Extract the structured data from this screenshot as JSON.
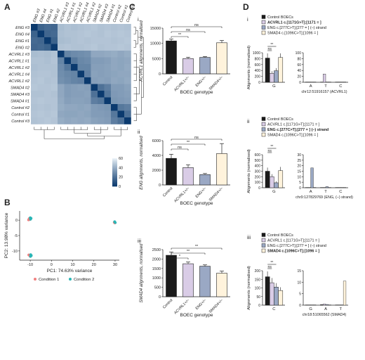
{
  "panels": {
    "A": {
      "label": "A",
      "samples": [
        "ENG #3",
        "ENG #4",
        "ENG #1",
        "ENG #2",
        "ACVRL1 #3",
        "ACVRL1 #1",
        "ACVRL1 #2",
        "ACVRL1 #4",
        "ACVRL1 #2",
        "SMAD4 #2",
        "SMAD4 #3",
        "SMAD4 #1",
        "Control #2",
        "Control #1",
        "Control #3"
      ],
      "rows": [
        "ENG #3",
        "ENG #4",
        "ENG #1",
        "ENG #2",
        "ACVRL1 #3",
        "ACVRL1 #1",
        "ACVRL1 #2",
        "ACVRL1 #4",
        "ACVRL1 #2",
        "SMAD4 #2",
        "SMAD4 #3",
        "SMAD4 #1",
        "Control #2",
        "Control #1",
        "Control #3"
      ],
      "colorbar_ticks": [
        "60",
        "40",
        "20",
        "0"
      ]
    },
    "B": {
      "label": "B",
      "xlabel": "PC1: 74.63% variance",
      "ylabel": "PC2: 13.98% variance",
      "xticks": [
        "-10",
        "0",
        "10",
        "20",
        "30"
      ],
      "yticks": [
        "0",
        "-5",
        "-10"
      ],
      "legend": [
        {
          "name": "Condition 1",
          "color": "#f08080"
        },
        {
          "name": "Condition 2",
          "color": "#2ab5b5"
        }
      ]
    },
    "C": {
      "label": "C",
      "xlabel": "BOEC genotype",
      "subpanels": [
        {
          "roman": "i",
          "ylabel": "ACVRL1 alignments, normalised",
          "yticks": [
            "0",
            "5000",
            "10000",
            "15000"
          ],
          "sig": [
            "**",
            "ns",
            "ns"
          ]
        },
        {
          "roman": "ii",
          "ylabel": "ENG alignments, normalised",
          "yticks": [
            "0",
            "2000",
            "4000",
            "6000"
          ],
          "sig": [
            "ns",
            "**",
            "ns"
          ]
        },
        {
          "roman": "iii",
          "ylabel": "SMAD4 alignments, normalised",
          "yticks": [
            "0",
            "500",
            "1000",
            "1500",
            "2000",
            "2500"
          ],
          "sig": [
            "*",
            "**",
            "**"
          ]
        }
      ]
    },
    "D": {
      "label": "D",
      "ylabel": "Alignments (normalised)",
      "subpanels": [
        {
          "roman": "i",
          "legend": [
            "Control BOECs",
            "ACVRL1 c.[1171G>T];[1171 = ]",
            "ENG c.[277C>T];[277 = ] (–) strand",
            "SMAD4 c.[1096C>T];[1096 = ]"
          ],
          "left_cat": "G",
          "right_cats": [
            "A",
            "T",
            "C"
          ],
          "locus": "chr12:51916157 (ACVRL1)",
          "yticks_left": [
            "0",
            "200",
            "400",
            "600",
            "800",
            "1000"
          ],
          "yticks_right": [
            "0",
            "20",
            "40",
            "60",
            "80",
            "100"
          ],
          "sig": [
            "**",
            "ns"
          ]
        },
        {
          "roman": "ii",
          "legend": [
            "Control BOECs",
            "ACVRL1 c.[1171G>T];[1171 = ]",
            "ENG c.[277C>T];[277 = ] (–) strand",
            "SMAD4 c.[1096C>T];[1096 = ]"
          ],
          "left_cat": "G",
          "right_cats": [
            "A",
            "T",
            "C"
          ],
          "locus": "chr9:127829769 (ENG, (–) strand)",
          "yticks_left": [
            "0",
            "100",
            "200",
            "300",
            "400",
            "500",
            "600"
          ],
          "yticks_right": [
            "0",
            "5",
            "10",
            "15",
            "20",
            "25",
            "30"
          ],
          "sig": [
            "**",
            "ns"
          ]
        },
        {
          "roman": "iii",
          "legend": [
            "Control BOECs",
            "ACVRL1 c.[1171G>T];[1171 = ]",
            "ENG c.[277C>T];[277 = ] (–) strand",
            "SMAD4 c.[1096C>T];[1096 = ]"
          ],
          "left_cat": "C",
          "right_cats": [
            "G",
            "A",
            "T"
          ],
          "locus": "chr18:51065562 (SMAD4)",
          "yticks_left": [
            "0",
            "50",
            "100",
            "150",
            "200"
          ],
          "yticks_right": [
            "0",
            "5",
            "10",
            "15"
          ],
          "sig": [
            "**",
            "ns"
          ]
        }
      ]
    }
  },
  "colors": {
    "control": "#1a1a1a",
    "acvrl1": "#d9cce6",
    "eng": "#9aa8c4",
    "smad4": "#fff3dc",
    "heat_dark": "#0b3a6e",
    "heat_light": "#eaf2f8"
  },
  "chart_data": [
    {
      "type": "heatmap",
      "title": "",
      "rows": [
        "ENG #3",
        "ENG #4",
        "ENG #1",
        "ENG #2",
        "ACVRL1 #3",
        "ACVRL1 #1",
        "ACVRL1 #2",
        "ACVRL1 #4",
        "ACVRL1 #2",
        "SMAD4 #2",
        "SMAD4 #3",
        "SMAD4 #1",
        "Control #2",
        "Control #1",
        "Control #3"
      ],
      "colorbar_range": [
        0,
        60
      ],
      "values": [
        [
          0,
          8,
          10,
          9,
          38,
          40,
          39,
          40,
          41,
          42,
          40,
          41,
          40,
          41,
          40
        ],
        [
          8,
          0,
          9,
          10,
          39,
          40,
          40,
          41,
          42,
          41,
          40,
          42,
          41,
          42,
          41
        ],
        [
          10,
          9,
          0,
          8,
          38,
          39,
          40,
          41,
          40,
          41,
          41,
          41,
          40,
          41,
          42
        ],
        [
          9,
          10,
          8,
          0,
          40,
          41,
          40,
          40,
          41,
          42,
          40,
          41,
          41,
          42,
          41
        ],
        [
          38,
          39,
          38,
          40,
          0,
          18,
          20,
          21,
          22,
          30,
          30,
          31,
          32,
          30,
          32
        ],
        [
          40,
          40,
          39,
          41,
          18,
          0,
          14,
          19,
          20,
          26,
          26,
          27,
          30,
          29,
          30
        ],
        [
          39,
          40,
          40,
          40,
          20,
          14,
          0,
          18,
          18,
          27,
          27,
          28,
          30,
          29,
          31
        ],
        [
          40,
          41,
          41,
          40,
          21,
          19,
          18,
          0,
          17,
          28,
          27,
          28,
          29,
          30,
          30
        ],
        [
          41,
          42,
          40,
          41,
          22,
          20,
          18,
          17,
          0,
          27,
          28,
          27,
          30,
          29,
          31
        ],
        [
          42,
          41,
          41,
          42,
          30,
          26,
          27,
          28,
          27,
          0,
          12,
          16,
          26,
          26,
          28
        ],
        [
          40,
          40,
          41,
          40,
          30,
          26,
          27,
          27,
          28,
          12,
          0,
          14,
          25,
          26,
          27
        ],
        [
          41,
          42,
          41,
          41,
          31,
          27,
          28,
          28,
          27,
          16,
          14,
          0,
          24,
          25,
          26
        ],
        [
          40,
          41,
          40,
          41,
          32,
          30,
          30,
          29,
          30,
          26,
          25,
          24,
          0,
          14,
          16
        ],
        [
          41,
          42,
          41,
          42,
          30,
          29,
          29,
          30,
          29,
          26,
          26,
          25,
          14,
          0,
          12
        ],
        [
          40,
          41,
          42,
          41,
          32,
          30,
          31,
          30,
          31,
          28,
          27,
          26,
          16,
          12,
          0
        ]
      ]
    },
    {
      "type": "scatter",
      "xlabel": "PC1: 74.63% variance",
      "ylabel": "PC2: 13.98% variance",
      "xlim": [
        -15,
        32
      ],
      "ylim": [
        -13,
        3
      ],
      "series": [
        {
          "name": "Condition 1",
          "points": [
            [
              -10.5,
              0.5
            ],
            [
              -10.2,
              0.2
            ],
            [
              -10.8,
              0.1
            ],
            [
              -10.4,
              -11.4
            ],
            [
              -10.1,
              -11.7
            ],
            [
              -10.7,
              -11.3
            ],
            [
              29.6,
              -0.7
            ],
            [
              29.9,
              -0.9
            ]
          ]
        },
        {
          "name": "Condition 2",
          "points": [
            [
              -9.6,
              0.6
            ],
            [
              -9.9,
              0.3
            ],
            [
              -10.0,
              0.8
            ],
            [
              -9.5,
              -11.5
            ],
            [
              -9.8,
              -11.2
            ],
            [
              -9.9,
              -11.8
            ],
            [
              29.8,
              -0.5
            ],
            [
              30.1,
              -0.8
            ]
          ]
        }
      ]
    },
    {
      "type": "bar",
      "xlabel": "BOEC genotype",
      "ylabel": "ACVRL1 alignments, normalised",
      "categories": [
        "Control",
        "ACVRL1+/−",
        "ENG+/−",
        "SMAD4+/−"
      ],
      "values": [
        10800,
        5000,
        5400,
        10200
      ],
      "errors": [
        600,
        450,
        250,
        750
      ],
      "ylim": [
        0,
        15000
      ]
    },
    {
      "type": "bar",
      "xlabel": "BOEC genotype",
      "ylabel": "ENG alignments, normalised",
      "categories": [
        "Control",
        "ACVRL1+/−",
        "ENG+/−",
        "SMAD4+/−"
      ],
      "values": [
        3600,
        2350,
        1400,
        4250
      ],
      "errors": [
        550,
        380,
        150,
        1350
      ],
      "ylim": [
        0,
        6000
      ]
    },
    {
      "type": "bar",
      "xlabel": "BOEC genotype",
      "ylabel": "SMAD4 alignments, normalised",
      "categories": [
        "Control",
        "ACVRL1+/−",
        "ENG+/−",
        "SMAD4+/−"
      ],
      "values": [
        2200,
        1750,
        1620,
        1250
      ],
      "errors": [
        170,
        90,
        70,
        110
      ],
      "ylim": [
        0,
        2500
      ]
    },
    {
      "type": "bar",
      "ylabel": "Alignments (normalised)",
      "categories": [
        "G"
      ],
      "series": [
        {
          "name": "Control BOECs",
          "values": [
            820
          ]
        },
        {
          "name": "ACVRL1 c.[1171G>T];[1171 = ]",
          "values": [
            300
          ]
        },
        {
          "name": "ENG c.[277C>T];[277 = ] (–) strand",
          "values": [
            390
          ]
        },
        {
          "name": "SMAD4 c.[1096C>T];[1096 = ]",
          "values": [
            840
          ]
        }
      ],
      "ylim": [
        0,
        1000
      ]
    },
    {
      "type": "bar",
      "ylabel": "Alignments (normalised)",
      "categories": [
        "A",
        "T",
        "C"
      ],
      "series": [
        {
          "name": "Control BOECs",
          "values": [
            0,
            0,
            0
          ]
        },
        {
          "name": "ACVRL1 c.[1171G>T];[1171 = ]",
          "values": [
            0,
            28,
            0
          ]
        },
        {
          "name": "ENG c.[277C>T];[277 = ] (–) strand",
          "values": [
            0,
            0,
            0
          ]
        },
        {
          "name": "SMAD4 c.[1096C>T];[1096 = ]",
          "values": [
            0,
            0,
            0
          ]
        }
      ],
      "ylim": [
        0,
        100
      ]
    },
    {
      "type": "bar",
      "ylabel": "Alignments (normalised)",
      "categories": [
        "G"
      ],
      "series": [
        {
          "name": "Control BOECs",
          "values": [
            300
          ]
        },
        {
          "name": "ACVRL1 c.[1171G>T];[1171 = ]",
          "values": [
            200
          ]
        },
        {
          "name": "ENG c.[277C>T];[277 = ] (–) strand",
          "values": [
            90
          ]
        },
        {
          "name": "SMAD4 c.[1096C>T];[1096 = ]",
          "values": [
            310
          ]
        }
      ],
      "ylim": [
        0,
        600
      ]
    },
    {
      "type": "bar",
      "ylabel": "Alignments (normalised)",
      "categories": [
        "A",
        "T",
        "C"
      ],
      "series": [
        {
          "name": "Control BOECs",
          "values": [
            0,
            0,
            0
          ]
        },
        {
          "name": "ACVRL1 c.[1171G>T];[1171 = ]",
          "values": [
            0,
            0,
            0
          ]
        },
        {
          "name": "ENG c.[277C>T];[277 = ] (–) strand",
          "values": [
            18,
            1,
            0
          ]
        },
        {
          "name": "SMAD4 c.[1096C>T];[1096 = ]",
          "values": [
            0,
            0,
            0
          ]
        }
      ],
      "ylim": [
        0,
        30
      ]
    },
    {
      "type": "bar",
      "ylabel": "Alignments (normalised)",
      "categories": [
        "C"
      ],
      "series": [
        {
          "name": "Control BOECs",
          "values": [
            165
          ]
        },
        {
          "name": "ACVRL1 c.[1171G>T];[1171 = ]",
          "values": [
            130
          ]
        },
        {
          "name": "ENG c.[277C>T];[277 = ] (–) strand",
          "values": [
            105
          ]
        },
        {
          "name": "SMAD4 c.[1096C>T];[1096 = ]",
          "values": [
            85
          ]
        }
      ],
      "ylim": [
        0,
        200
      ]
    },
    {
      "type": "bar",
      "ylabel": "Alignments (normalised)",
      "categories": [
        "G",
        "A",
        "T"
      ],
      "series": [
        {
          "name": "Control BOECs",
          "values": [
            0,
            0.2,
            0
          ]
        },
        {
          "name": "ACVRL1 c.[1171G>T];[1171 = ]",
          "values": [
            0,
            0.5,
            0
          ]
        },
        {
          "name": "ENG c.[277C>T];[277 = ] (–) strand",
          "values": [
            0,
            0.3,
            0
          ]
        },
        {
          "name": "SMAD4 c.[1096C>T];[1096 = ]",
          "values": [
            0,
            0,
            10.5
          ]
        }
      ],
      "ylim": [
        0,
        15
      ]
    }
  ]
}
